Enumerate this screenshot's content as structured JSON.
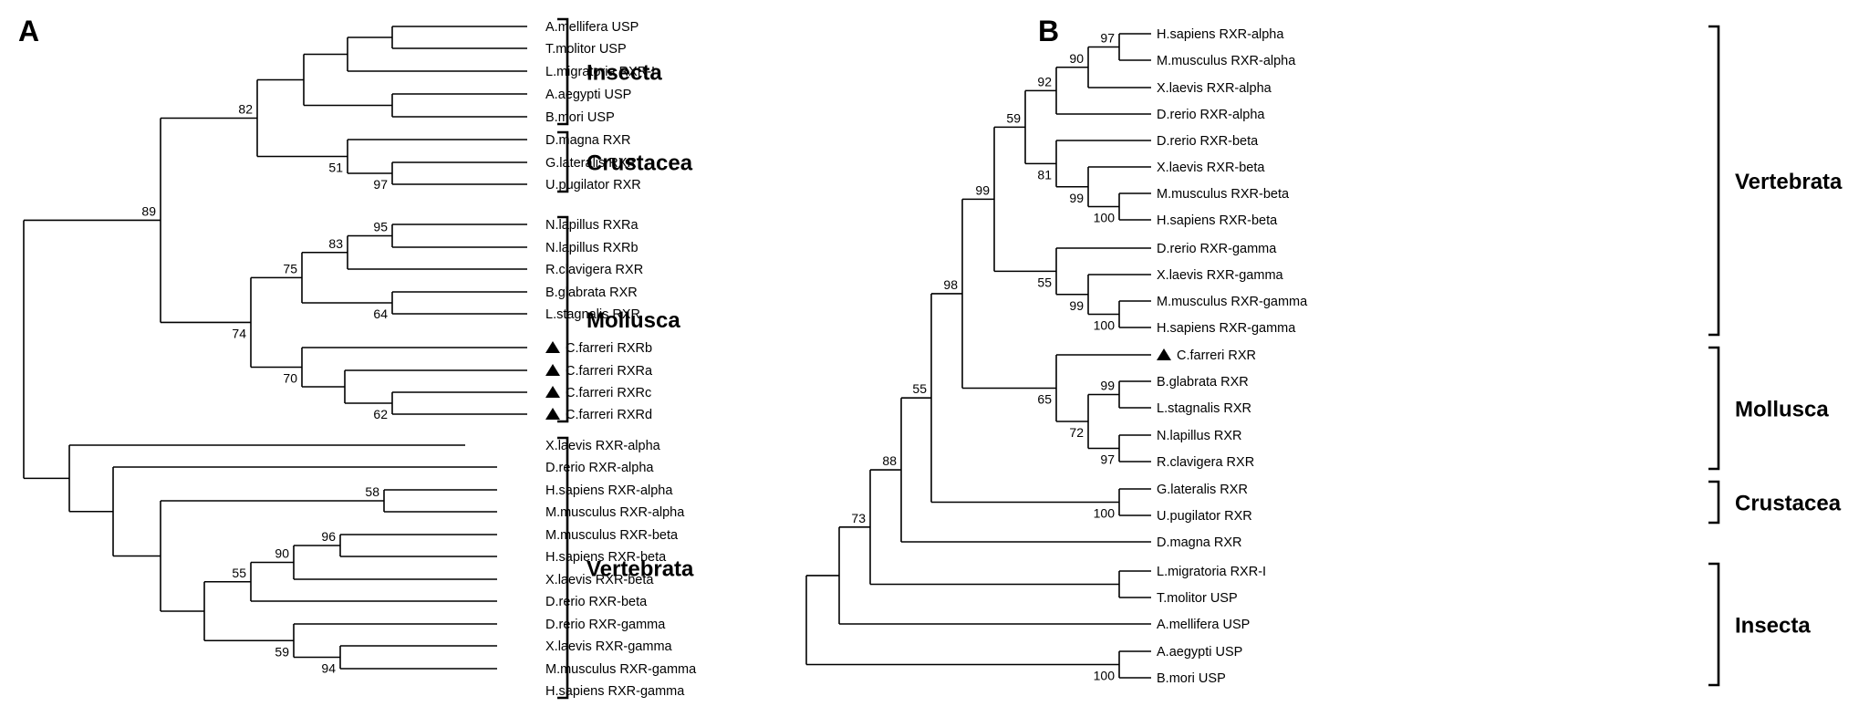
{
  "panels": [
    {
      "letter": "A",
      "taxa": [
        {
          "name": "A.mellifera USP"
        },
        {
          "name": "T.molitor USP"
        },
        {
          "name": "L.migratoria RXR-I"
        },
        {
          "name": "A.aegypti USP"
        },
        {
          "name": "B.mori USP"
        },
        {
          "name": "D.magna RXR"
        },
        {
          "name": "G.lateralis RXR"
        },
        {
          "name": "U.pugilator RXR"
        },
        {
          "name": "N.lapillus RXRa"
        },
        {
          "name": "N.lapillus RXRb"
        },
        {
          "name": "R.clavigera RXR"
        },
        {
          "name": "B.glabrata RXR"
        },
        {
          "name": "L.stagnalis RXR"
        },
        {
          "name": "C.farreri RXRb",
          "marked": true
        },
        {
          "name": "C.farreri RXRa",
          "marked": true
        },
        {
          "name": "C.farreri RXRc",
          "marked": true
        },
        {
          "name": "C.farreri RXRd",
          "marked": true
        },
        {
          "name": "X.laevis RXR-alpha"
        },
        {
          "name": "D.rerio RXR-alpha"
        },
        {
          "name": "H.sapiens RXR-alpha"
        },
        {
          "name": "M.musculus RXR-alpha"
        },
        {
          "name": "M.musculus RXR-beta"
        },
        {
          "name": "H.sapiens RXR-beta"
        },
        {
          "name": "X.laevis RXR-beta"
        },
        {
          "name": "D.rerio RXR-beta"
        },
        {
          "name": "D.rerio RXR-gamma"
        },
        {
          "name": "X.laevis RXR-gamma"
        },
        {
          "name": "M.musculus RXR-gamma"
        },
        {
          "name": "H.sapiens RXR-gamma"
        }
      ],
      "groups": [
        {
          "label": "Insecta",
          "from": 0,
          "to": 4
        },
        {
          "label": "Crustacea",
          "from": 5,
          "to": 7
        },
        {
          "label": "Mollusca",
          "from": 8,
          "to": 16
        },
        {
          "label": "Vertebrata",
          "from": 17,
          "to": 28
        }
      ],
      "bootstrap": [
        "82",
        "51",
        "97",
        "89",
        "95",
        "83",
        "75",
        "64",
        "74",
        "70",
        "62",
        "58",
        "96",
        "90",
        "55",
        "59",
        "94"
      ]
    },
    {
      "letter": "B",
      "taxa": [
        {
          "name": "H.sapiens RXR-alpha"
        },
        {
          "name": "M.musculus RXR-alpha"
        },
        {
          "name": "X.laevis RXR-alpha"
        },
        {
          "name": "D.rerio RXR-alpha"
        },
        {
          "name": "D.rerio RXR-beta"
        },
        {
          "name": "X.laevis RXR-beta"
        },
        {
          "name": "M.musculus RXR-beta"
        },
        {
          "name": "H.sapiens RXR-beta"
        },
        {
          "name": "D.rerio RXR-gamma"
        },
        {
          "name": "X.laevis RXR-gamma"
        },
        {
          "name": "M.musculus RXR-gamma"
        },
        {
          "name": "H.sapiens RXR-gamma"
        },
        {
          "name": "C.farreri RXR",
          "marked": true
        },
        {
          "name": "B.glabrata RXR"
        },
        {
          "name": "L.stagnalis RXR"
        },
        {
          "name": "N.lapillus RXR"
        },
        {
          "name": "R.clavigera RXR"
        },
        {
          "name": "G.lateralis RXR"
        },
        {
          "name": "U.pugilator RXR"
        },
        {
          "name": "D.magna RXR"
        },
        {
          "name": "L.migratoria RXR-I"
        },
        {
          "name": "T.molitor USP"
        },
        {
          "name": "A.mellifera USP"
        },
        {
          "name": "A.aegypti USP"
        },
        {
          "name": "B.mori USP"
        }
      ],
      "groups": [
        {
          "label": "Vertebrata",
          "from": 0,
          "to": 11
        },
        {
          "label": "Mollusca",
          "from": 12,
          "to": 16
        },
        {
          "label": "Crustacea",
          "from": 17,
          "to": 18
        },
        {
          "label": "Insecta",
          "from": 20,
          "to": 24
        }
      ],
      "bootstrap": [
        "97",
        "90",
        "92",
        "59",
        "81",
        "99",
        "100",
        "99",
        "55",
        "99",
        "100",
        "98",
        "99",
        "65",
        "72",
        "97",
        "55",
        "100",
        "88",
        "73",
        "100"
      ]
    }
  ]
}
